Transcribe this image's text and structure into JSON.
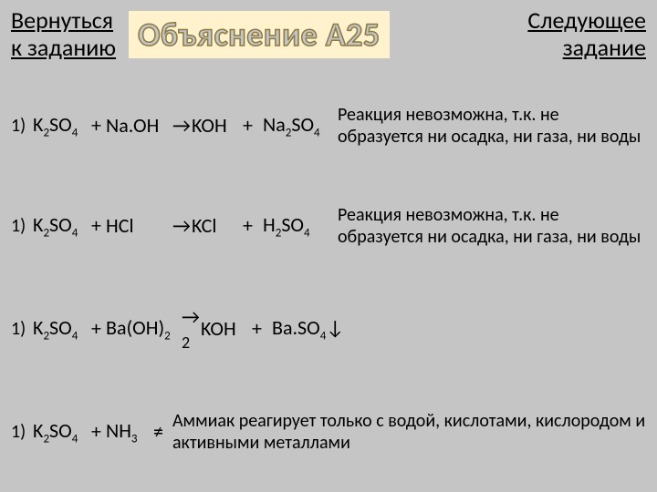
{
  "colors": {
    "background": "#c5c5c5",
    "title_fill": "#c5c5c5",
    "title_stroke": "#8a7a44",
    "title_bg": "#fff2cc",
    "text": "#000000"
  },
  "typography": {
    "nav_fontsize": 26,
    "title_fontsize": 36,
    "chem_fontsize": 22,
    "expl_fontsize": 20
  },
  "header": {
    "back_line1": "Вернуться",
    "back_line2": "к заданию",
    "title": "Объяснение А25",
    "next_line1": "Следующее",
    "next_line2": "задание"
  },
  "rows": [
    {
      "idx": "1)",
      "lhs1": "K₂SO₄",
      "plus1": "+",
      "lhs2": "Na.OH",
      "arrow": "→",
      "rhs1": "KOH",
      "plus2": "+",
      "rhs2": "Na₂SO₄",
      "expl": "Реакция невозможна, т.к. не образуется ни осадка, ни газа, ни воды"
    },
    {
      "idx": "1)",
      "lhs1": "K₂SO₄",
      "plus1": "+",
      "lhs2": "HCl",
      "arrow": "→",
      "rhs1": "KCl",
      "plus2": "+",
      "rhs2": "H₂SO₄",
      "expl": "Реакция невозможна, т.к. не образуется ни осадка, ни газа, ни воды"
    },
    {
      "idx": "1)",
      "lhs1": "K₂SO₄",
      "plus1": "+",
      "lhs2": "Ba(OH)₂",
      "arrow": "→",
      "coef": "2",
      "rhs1": "KOH",
      "plus2": "+",
      "rhs2": "Ba.SO₄↓",
      "expl": ""
    },
    {
      "idx": "1)",
      "lhs1": "K₂SO₄",
      "plus1": "+",
      "lhs2": "NH₃",
      "ne": "≠",
      "expl": "Аммиак реагирует только с водой, кислотами, кислородом и активными металлами"
    }
  ]
}
